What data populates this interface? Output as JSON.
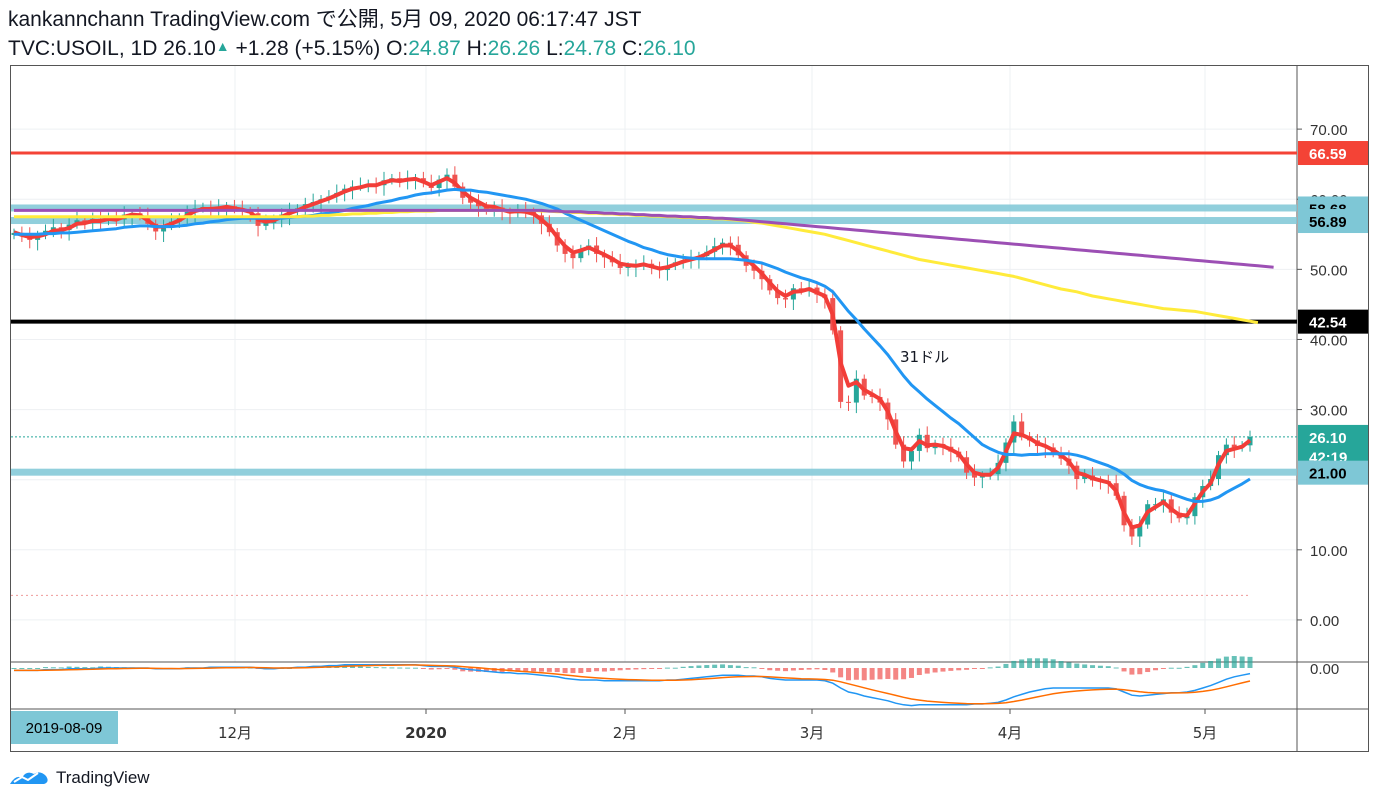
{
  "header": {
    "line1": "kankannchann TradingView.com で公開, 5月 09, 2020 06:17:47 JST",
    "symbol": "TVC:USOIL, 1D",
    "last": "26.10",
    "change": "+1.28 (+5.15%)",
    "open_label": "O:",
    "open": "24.87",
    "high_label": "H:",
    "high": "26.26",
    "low_label": "L:",
    "low": "24.78",
    "close_label": "C:",
    "close": "26.10"
  },
  "brand": {
    "name": "TradingView"
  },
  "annotation": {
    "text": "31ドル"
  },
  "chart_data": {
    "type": "candlestick",
    "symbol": "TVC:USOIL",
    "interval": "1D",
    "ylim": [
      -6,
      79
    ],
    "y_ticks": [
      "70.00",
      "60.00",
      "50.00",
      "40.00",
      "30.00",
      "10.00",
      "0.00"
    ],
    "x_ticks": [
      "12月",
      "2020",
      "2月",
      "3月",
      "4月",
      "5月"
    ],
    "cursor_date": "2019-08-09",
    "price_labels": [
      {
        "value": "66.59",
        "color": "#f44336"
      },
      {
        "value": "58.68",
        "color": "#7ec7d6"
      },
      {
        "value": "56.89",
        "color": "#7ec7d6"
      },
      {
        "value": "42.54",
        "color": "#000000"
      },
      {
        "value": "26.10",
        "color": "#26a69a"
      },
      {
        "value": "42:19",
        "color": "#26a69a"
      },
      {
        "value": "21.00",
        "color": "#7ec7d6"
      }
    ],
    "horizontal_lines": [
      {
        "value": 66.59,
        "color": "#f44336"
      },
      {
        "value": 58.68,
        "color": "#7ec7d6"
      },
      {
        "value": 56.89,
        "color": "#7ec7d6"
      },
      {
        "value": 42.54,
        "color": "#000000"
      },
      {
        "value": 21.0,
        "color": "#7ec7d6"
      }
    ],
    "closes": [
      55.2,
      54.8,
      54.2,
      54.9,
      55.5,
      56.0,
      55.6,
      56.4,
      57.0,
      56.6,
      57.2,
      56.9,
      57.5,
      57.1,
      57.8,
      58.0,
      57.6,
      56.5,
      55.4,
      56.2,
      56.8,
      57.4,
      58.2,
      58.7,
      58.9,
      58.5,
      58.8,
      59.0,
      58.6,
      58.3,
      58.0,
      56.2,
      56.6,
      57.2,
      57.8,
      58.3,
      58.7,
      59.3,
      59.6,
      60.0,
      60.4,
      60.9,
      61.5,
      61.8,
      61.9,
      62.2,
      62.0,
      62.7,
      63.0,
      62.6,
      62.9,
      63.0,
      62.3,
      61.6,
      62.8,
      63.5,
      61.8,
      60.2,
      59.5,
      59.0,
      58.4,
      58.8,
      58.2,
      58.0,
      58.4,
      58.2,
      57.7,
      56.5,
      55.3,
      53.4,
      52.2,
      51.6,
      52.9,
      53.4,
      52.2,
      51.7,
      51.0,
      50.2,
      50.4,
      50.5,
      50.8,
      50.2,
      49.9,
      50.5,
      51.0,
      51.3,
      51.6,
      51.9,
      52.5,
      53.3,
      53.8,
      53.5,
      52.0,
      50.5,
      49.8,
      48.6,
      47.0,
      45.9,
      45.7,
      47.3,
      47.0,
      47.4,
      46.4,
      45.9,
      41.3,
      31.1,
      31.0,
      34.4,
      32.0,
      31.8,
      31.0,
      28.6,
      25.0,
      22.6,
      24.1,
      26.4,
      24.5,
      25.1,
      24.7,
      24.0,
      23.2,
      21.0,
      20.3,
      20.6,
      20.8,
      22.4,
      25.3,
      28.3,
      26.2,
      25.6,
      24.8,
      24.6,
      23.8,
      23.0,
      22.0,
      20.1,
      20.6,
      19.9,
      19.8,
      19.5,
      17.7,
      13.5,
      11.9,
      13.6,
      16.5,
      16.5,
      17.2,
      15.3,
      14.5,
      14.8,
      17.5,
      19.1,
      20.1,
      23.5,
      25.0,
      24.6,
      24.9,
      26.1
    ],
    "series": [
      {
        "name": "",
        "color": "#f23d38",
        "values": [
          55.3,
          54.9,
          54.6,
          54.7,
          55.0,
          55.5,
          55.6,
          55.9,
          56.5,
          56.6,
          56.9,
          56.9,
          57.2,
          57.1,
          57.5,
          57.8,
          57.7,
          57.0,
          56.1,
          56.1,
          56.5,
          57.0,
          57.7,
          58.3,
          58.6,
          58.6,
          58.7,
          58.9,
          58.7,
          58.5,
          58.2,
          57.1,
          56.8,
          57.0,
          57.5,
          58.0,
          58.4,
          58.9,
          59.3,
          59.7,
          60.1,
          60.6,
          61.1,
          61.5,
          61.7,
          62.0,
          62.0,
          62.4,
          62.7,
          62.6,
          62.8,
          62.9,
          62.5,
          62.0,
          62.5,
          63.0,
          62.3,
          61.1,
          60.2,
          59.6,
          59.0,
          58.9,
          58.5,
          58.2,
          58.3,
          58.2,
          57.9,
          57.1,
          56.1,
          54.6,
          53.3,
          52.4,
          52.7,
          53.1,
          52.6,
          52.1,
          51.5,
          50.8,
          50.6,
          50.5,
          50.7,
          50.4,
          50.1,
          50.3,
          50.7,
          51.1,
          51.4,
          51.7,
          52.2,
          52.8,
          53.4,
          53.4,
          52.6,
          51.4,
          50.5,
          49.4,
          48.1,
          46.9,
          46.2,
          46.8,
          46.9,
          47.2,
          46.7,
          46.2,
          43.5,
          36.7,
          33.4,
          33.9,
          32.8,
          32.2,
          31.5,
          29.7,
          26.9,
          24.5,
          24.3,
          25.5,
          24.9,
          25.0,
          24.8,
          24.3,
          23.7,
          22.2,
          21.0,
          20.7,
          20.7,
          21.7,
          24.0,
          26.6,
          26.4,
          25.9,
          25.2,
          24.8,
          24.2,
          23.5,
          22.6,
          21.0,
          20.7,
          20.2,
          19.9,
          19.6,
          18.4,
          15.3,
          13.2,
          13.5,
          15.4,
          16.1,
          16.8,
          15.8,
          15.0,
          14.9,
          16.6,
          18.3,
          19.5,
          22.2,
          24.1,
          24.4,
          24.7,
          25.6
        ]
      },
      {
        "name": "",
        "color": "#2196f3",
        "values": [
          55.0,
          55.0,
          55.0,
          55.0,
          55.1,
          55.1,
          55.2,
          55.2,
          55.3,
          55.4,
          55.5,
          55.6,
          55.7,
          55.8,
          56.0,
          56.1,
          56.2,
          56.2,
          56.1,
          56.1,
          56.1,
          56.2,
          56.3,
          56.5,
          56.6,
          56.8,
          56.9,
          57.1,
          57.2,
          57.3,
          57.3,
          57.3,
          57.3,
          57.3,
          57.3,
          57.4,
          57.5,
          57.6,
          57.7,
          57.9,
          58.0,
          58.2,
          58.4,
          58.7,
          58.9,
          59.1,
          59.4,
          59.6,
          59.8,
          60.1,
          60.3,
          60.6,
          60.8,
          60.9,
          61.1,
          61.3,
          61.4,
          61.3,
          61.3,
          61.1,
          61.0,
          60.8,
          60.6,
          60.4,
          60.2,
          60.0,
          59.7,
          59.4,
          59.0,
          58.6,
          58.0,
          57.5,
          57.0,
          56.5,
          56.0,
          55.5,
          55.0,
          54.5,
          54.0,
          53.6,
          53.1,
          52.8,
          52.4,
          52.1,
          51.9,
          51.7,
          51.6,
          51.5,
          51.5,
          51.5,
          51.5,
          51.5,
          51.4,
          51.3,
          51.1,
          50.9,
          50.5,
          50.1,
          49.6,
          49.2,
          48.8,
          48.5,
          48.1,
          47.6,
          46.8,
          45.4,
          44.0,
          42.8,
          41.5,
          40.3,
          39.1,
          37.8,
          36.3,
          34.8,
          33.5,
          32.5,
          31.5,
          30.6,
          29.7,
          28.8,
          28.0,
          27.0,
          26.0,
          25.0,
          24.4,
          23.9,
          23.6,
          23.6,
          23.5,
          23.6,
          23.6,
          23.7,
          23.7,
          23.7,
          23.7,
          23.5,
          23.2,
          22.8,
          22.4,
          22.0,
          21.5,
          20.8,
          19.9,
          19.3,
          18.9,
          18.6,
          18.4,
          18.0,
          17.6,
          17.2,
          16.9,
          16.9,
          17.1,
          17.5,
          18.2,
          18.8,
          19.4,
          20.1
        ]
      },
      {
        "name": "",
        "color": "#ffeb3b",
        "values": [
          57.5,
          57.5,
          57.5,
          57.5,
          57.5,
          57.5,
          57.5,
          57.5,
          57.5,
          57.5,
          57.5,
          57.5,
          57.5,
          57.5,
          57.5,
          57.5,
          57.5,
          57.5,
          57.5,
          57.5,
          57.5,
          57.5,
          57.5,
          57.5,
          57.5,
          57.5,
          57.5,
          57.5,
          57.5,
          57.5,
          57.5,
          57.5,
          57.5,
          57.5,
          57.5,
          57.5,
          57.5,
          57.6,
          57.6,
          57.7,
          57.7,
          57.8,
          57.8,
          57.9,
          57.9,
          58.0,
          58.0,
          58.1,
          58.1,
          58.2,
          58.2,
          58.3,
          58.3,
          58.3,
          58.4,
          58.4,
          58.4,
          58.4,
          58.4,
          58.4,
          58.4,
          58.4,
          58.4,
          58.4,
          58.4,
          58.4,
          58.4,
          58.3,
          58.3,
          58.2,
          58.2,
          58.1,
          58.1,
          58.0,
          58.0,
          57.9,
          57.9,
          57.8,
          57.8,
          57.7,
          57.7,
          57.6,
          57.6,
          57.5,
          57.5,
          57.4,
          57.4,
          57.3,
          57.3,
          57.2,
          57.2,
          57.1,
          57.0,
          56.9,
          56.7,
          56.6,
          56.4,
          56.2,
          56.0,
          55.8,
          55.6,
          55.4,
          55.2,
          55.0,
          54.7,
          54.4,
          54.1,
          53.8,
          53.5,
          53.2,
          52.9,
          52.6,
          52.3,
          52.0,
          51.7,
          51.4,
          51.2,
          51.0,
          50.8,
          50.6,
          50.4,
          50.2,
          50.0,
          49.8,
          49.6,
          49.4,
          49.2,
          49.0,
          48.7,
          48.4,
          48.1,
          47.8,
          47.5,
          47.2,
          47.0,
          46.8,
          46.5,
          46.2,
          46.0,
          45.8,
          45.6,
          45.4,
          45.2,
          45.0,
          44.8,
          44.6,
          44.4,
          44.3,
          44.2,
          44.1,
          44.0,
          43.8,
          43.6,
          43.4,
          43.2,
          43.0,
          42.8,
          42.6,
          42.4
        ]
      },
      {
        "name": "",
        "color": "#9c4fb4",
        "values": [
          58.4,
          58.4,
          58.4,
          58.4,
          58.4,
          58.4,
          58.4,
          58.4,
          58.4,
          58.4,
          58.4,
          58.4,
          58.4,
          58.4,
          58.4,
          58.4,
          58.4,
          58.4,
          58.4,
          58.4,
          58.4,
          58.4,
          58.4,
          58.4,
          58.4,
          58.4,
          58.4,
          58.4,
          58.4,
          58.4,
          58.4,
          58.4,
          58.4,
          58.4,
          58.4,
          58.4,
          58.4,
          58.4,
          58.4,
          58.4,
          58.4,
          58.4,
          58.4,
          58.4,
          58.4,
          58.4,
          58.4,
          58.4,
          58.4,
          58.4,
          58.4,
          58.4,
          58.4,
          58.4,
          58.4,
          58.4,
          58.4,
          58.4,
          58.4,
          58.4,
          58.4,
          58.4,
          58.4,
          58.4,
          58.4,
          58.4,
          58.4,
          58.4,
          58.3,
          58.3,
          58.2,
          58.2,
          58.2,
          58.1,
          58.1,
          58.0,
          58.0,
          57.9,
          57.9,
          57.8,
          57.8,
          57.7,
          57.7,
          57.6,
          57.6,
          57.5,
          57.5,
          57.4,
          57.4,
          57.3,
          57.3,
          57.2,
          57.1,
          57.0,
          56.9,
          56.8,
          56.7,
          56.6,
          56.5,
          56.4,
          56.3,
          56.2,
          56.1,
          56.0,
          55.9,
          55.8,
          55.7,
          55.6,
          55.5,
          55.4,
          55.3,
          55.2,
          55.1,
          55.0,
          54.9,
          54.8,
          54.7,
          54.6,
          54.5,
          54.4,
          54.3,
          54.2,
          54.1,
          54.0,
          53.9,
          53.8,
          53.7,
          53.6,
          53.5,
          53.4,
          53.3,
          53.2,
          53.1,
          53.0,
          52.9,
          52.8,
          52.7,
          52.6,
          52.5,
          52.4,
          52.3,
          52.2,
          52.1,
          52.0,
          51.9,
          51.8,
          51.7,
          51.6,
          51.5,
          51.4,
          51.3,
          51.2,
          51.1,
          51.0,
          50.9,
          50.8,
          50.7,
          50.6,
          50.5,
          50.4,
          50.3
        ]
      }
    ],
    "indicator": {
      "ylim": [
        -5,
        0.5
      ],
      "label": "0.00",
      "macd_color": "#2196f3",
      "signal_color": "#ff6d00",
      "hist_up_color": "#26a69a",
      "hist_down_color": "#ef5350",
      "macd": [
        -0.3,
        -0.3,
        -0.3,
        -0.3,
        -0.2,
        -0.2,
        -0.2,
        -0.1,
        -0.1,
        -0.1,
        -0.1,
        0.0,
        0.0,
        0.0,
        0.0,
        0.0,
        0.0,
        0.0,
        -0.1,
        -0.1,
        -0.1,
        -0.1,
        0.0,
        0.0,
        0.0,
        0.1,
        0.1,
        0.1,
        0.1,
        0.1,
        0.1,
        0.0,
        -0.1,
        -0.1,
        0.0,
        0.0,
        0.1,
        0.1,
        0.2,
        0.2,
        0.3,
        0.3,
        0.4,
        0.4,
        0.4,
        0.4,
        0.4,
        0.4,
        0.4,
        0.4,
        0.4,
        0.4,
        0.3,
        0.2,
        0.2,
        0.2,
        0.1,
        -0.1,
        -0.2,
        -0.3,
        -0.4,
        -0.5,
        -0.6,
        -0.6,
        -0.7,
        -0.7,
        -0.8,
        -0.9,
        -1.0,
        -1.1,
        -1.3,
        -1.4,
        -1.5,
        -1.5,
        -1.5,
        -1.6,
        -1.6,
        -1.6,
        -1.6,
        -1.6,
        -1.6,
        -1.6,
        -1.6,
        -1.5,
        -1.5,
        -1.4,
        -1.3,
        -1.2,
        -1.1,
        -1.0,
        -0.9,
        -0.9,
        -0.9,
        -1.0,
        -1.0,
        -1.1,
        -1.3,
        -1.4,
        -1.5,
        -1.5,
        -1.5,
        -1.5,
        -1.5,
        -1.6,
        -1.9,
        -2.5,
        -3.0,
        -3.2,
        -3.5,
        -3.7,
        -3.9,
        -4.1,
        -4.4,
        -4.6,
        -4.7,
        -4.6,
        -4.6,
        -4.6,
        -4.6,
        -4.6,
        -4.6,
        -4.6,
        -4.5,
        -4.5,
        -4.4,
        -4.3,
        -4.0,
        -3.6,
        -3.3,
        -3.0,
        -2.8,
        -2.6,
        -2.5,
        -2.5,
        -2.5,
        -2.5,
        -2.5,
        -2.5,
        -2.5,
        -2.5,
        -2.6,
        -3.0,
        -3.4,
        -3.5,
        -3.4,
        -3.3,
        -3.2,
        -3.1,
        -3.1,
        -3.0,
        -2.8,
        -2.5,
        -2.2,
        -1.8,
        -1.4,
        -1.1,
        -0.9,
        -0.7
      ]
    }
  }
}
